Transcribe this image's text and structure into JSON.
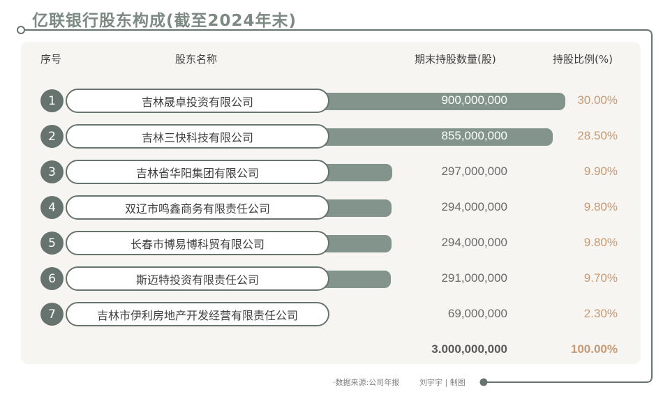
{
  "title": "亿联银行股东构成(截至2024年末)",
  "headers": {
    "index": "序号",
    "name": "股东名称",
    "shares": "期末持股数量(股)",
    "ratio": "持股比例(%)"
  },
  "chart_data": {
    "type": "bar",
    "categories": [
      "吉林晟卓投资有限公司",
      "吉林三快科技有限公司",
      "吉林省华阳集团有限公司",
      "双辽市鸣鑫商务有限责任公司",
      "长春市博易博科贸有限公司",
      "斯迈特投资有限责任公司",
      "吉林市伊利房地产开发经营有限责任公司"
    ],
    "values": [
      900000000,
      855000000,
      297000000,
      294000000,
      294000000,
      291000000,
      69000000
    ],
    "index_labels": [
      "1",
      "2",
      "3",
      "4",
      "5",
      "6",
      "7"
    ],
    "value_labels": [
      "900,000,000",
      "855,000,000",
      "297,000,000",
      "294,000,000",
      "294,000,000",
      "291,000,000",
      "69,000,000"
    ],
    "percent_labels": [
      "30.00%",
      "28.50%",
      "9.90%",
      "9.80%",
      "9.80%",
      "9.70%",
      "2.30%"
    ],
    "total_value_label": "3.000,000,000",
    "total_percent_label": "100.00%"
  },
  "footer": {
    "source": "·数据来源:公司年报",
    "author": "刘宇宇 | 制图"
  },
  "colors": {
    "bar": "#82948b",
    "accent_dark": "#67736e",
    "percent": "#c79a76",
    "title": "#7c8a83",
    "card_bg": "#f7f5f1"
  }
}
